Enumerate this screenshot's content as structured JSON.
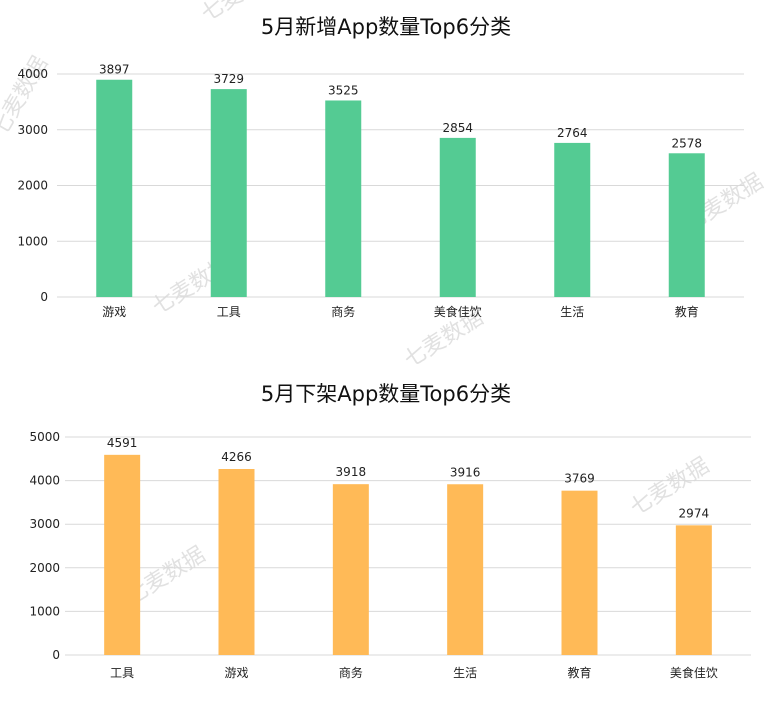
{
  "watermark": "七麦数据",
  "chart_data": [
    {
      "type": "bar",
      "title": "5月新增App数量Top6分类",
      "categories": [
        "游戏",
        "工具",
        "商务",
        "美食佳饮",
        "生活",
        "教育"
      ],
      "values": [
        3897,
        3729,
        3525,
        2854,
        2764,
        2578
      ],
      "ylim": [
        0,
        4000
      ],
      "yticks": [
        0,
        1000,
        2000,
        3000,
        4000
      ],
      "color": "#54cb93",
      "grid": true,
      "legend": "none"
    },
    {
      "type": "bar",
      "title": "5月下架App数量Top6分类",
      "categories": [
        "工具",
        "游戏",
        "商务",
        "生活",
        "教育",
        "美食佳饮"
      ],
      "values": [
        4591,
        4266,
        3918,
        3916,
        3769,
        2974
      ],
      "ylim": [
        0,
        5000
      ],
      "yticks": [
        0,
        1000,
        2000,
        3000,
        4000,
        5000
      ],
      "color": "#ffba57",
      "grid": true,
      "legend": "none"
    }
  ]
}
